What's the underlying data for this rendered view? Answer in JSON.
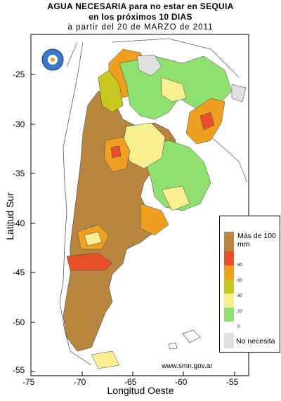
{
  "title": {
    "line1": "AGUA NECESARIA para no estar  en SEQUIA",
    "line2": "en los próximos 10 DIAS",
    "line3": "a partir del 20 de MARZO de 2011"
  },
  "axes": {
    "y_title": "Latitud Sur",
    "x_title": "Longitud Oeste",
    "y_ticks": [
      "-25",
      "-30",
      "-35",
      "-40",
      "-45",
      "-50",
      "-55"
    ],
    "x_ticks": [
      "-75",
      "-70",
      "-65",
      "-60",
      "-55"
    ]
  },
  "legend": {
    "top_label": "Más de 100 mm",
    "levels": [
      "80",
      "60",
      "40",
      "20",
      "0"
    ],
    "bottom_label": "No necesita",
    "colors": [
      "#b8863e",
      "#e8502a",
      "#f0a020",
      "#c8c820",
      "#f8f090",
      "#90e070",
      "#e0e0e0"
    ]
  },
  "source": "www.smn.gov.ar"
}
